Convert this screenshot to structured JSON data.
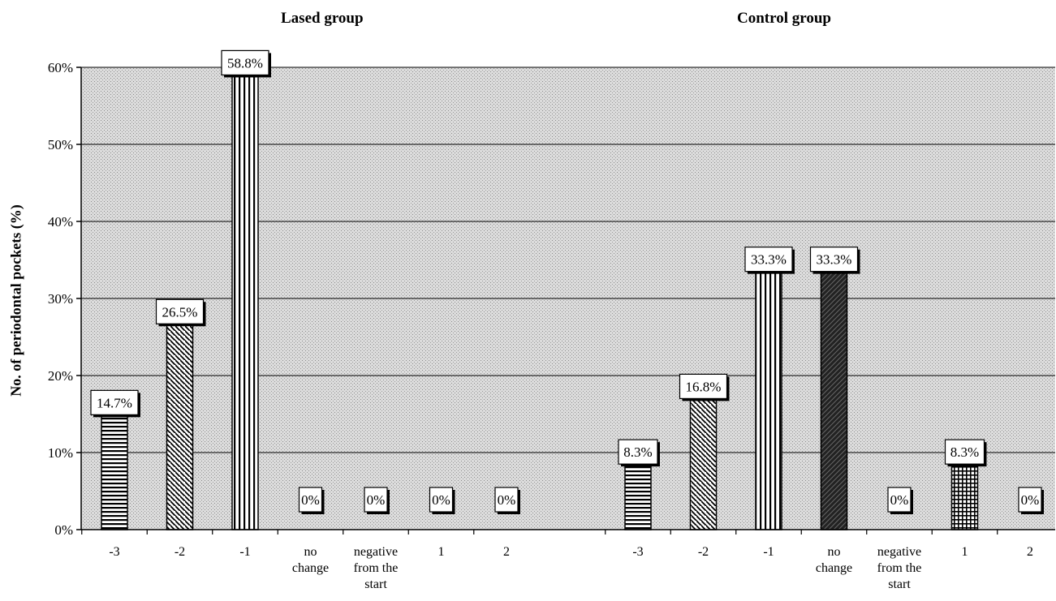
{
  "chart_data": {
    "type": "bar",
    "ylabel": "No. of periodontal pockets (%)",
    "xlabel": "",
    "ylim": [
      0,
      60
    ],
    "yticks": [
      "0%",
      "10%",
      "20%",
      "30%",
      "40%",
      "50%",
      "60%"
    ],
    "grid": true,
    "panels": [
      {
        "title": "Lased group",
        "categories": [
          "-3",
          "-2",
          "-1",
          "no change",
          "negative from the start",
          "1",
          "2"
        ],
        "values": [
          14.7,
          26.5,
          58.8,
          0,
          0,
          0,
          0
        ],
        "labels": [
          "14.7%",
          "26.5%",
          "58.8%",
          "0%",
          "0%",
          "0%",
          "0%"
        ]
      },
      {
        "title": "Control group",
        "categories": [
          "-3",
          "-2",
          "-1",
          "no change",
          "negative from the start",
          "1",
          "2"
        ],
        "values": [
          8.3,
          16.8,
          33.3,
          33.3,
          0,
          8.3,
          0
        ],
        "labels": [
          "8.3%",
          "16.8%",
          "33.3%",
          "33.3%",
          "0%",
          "8.3%",
          "0%"
        ]
      }
    ]
  }
}
